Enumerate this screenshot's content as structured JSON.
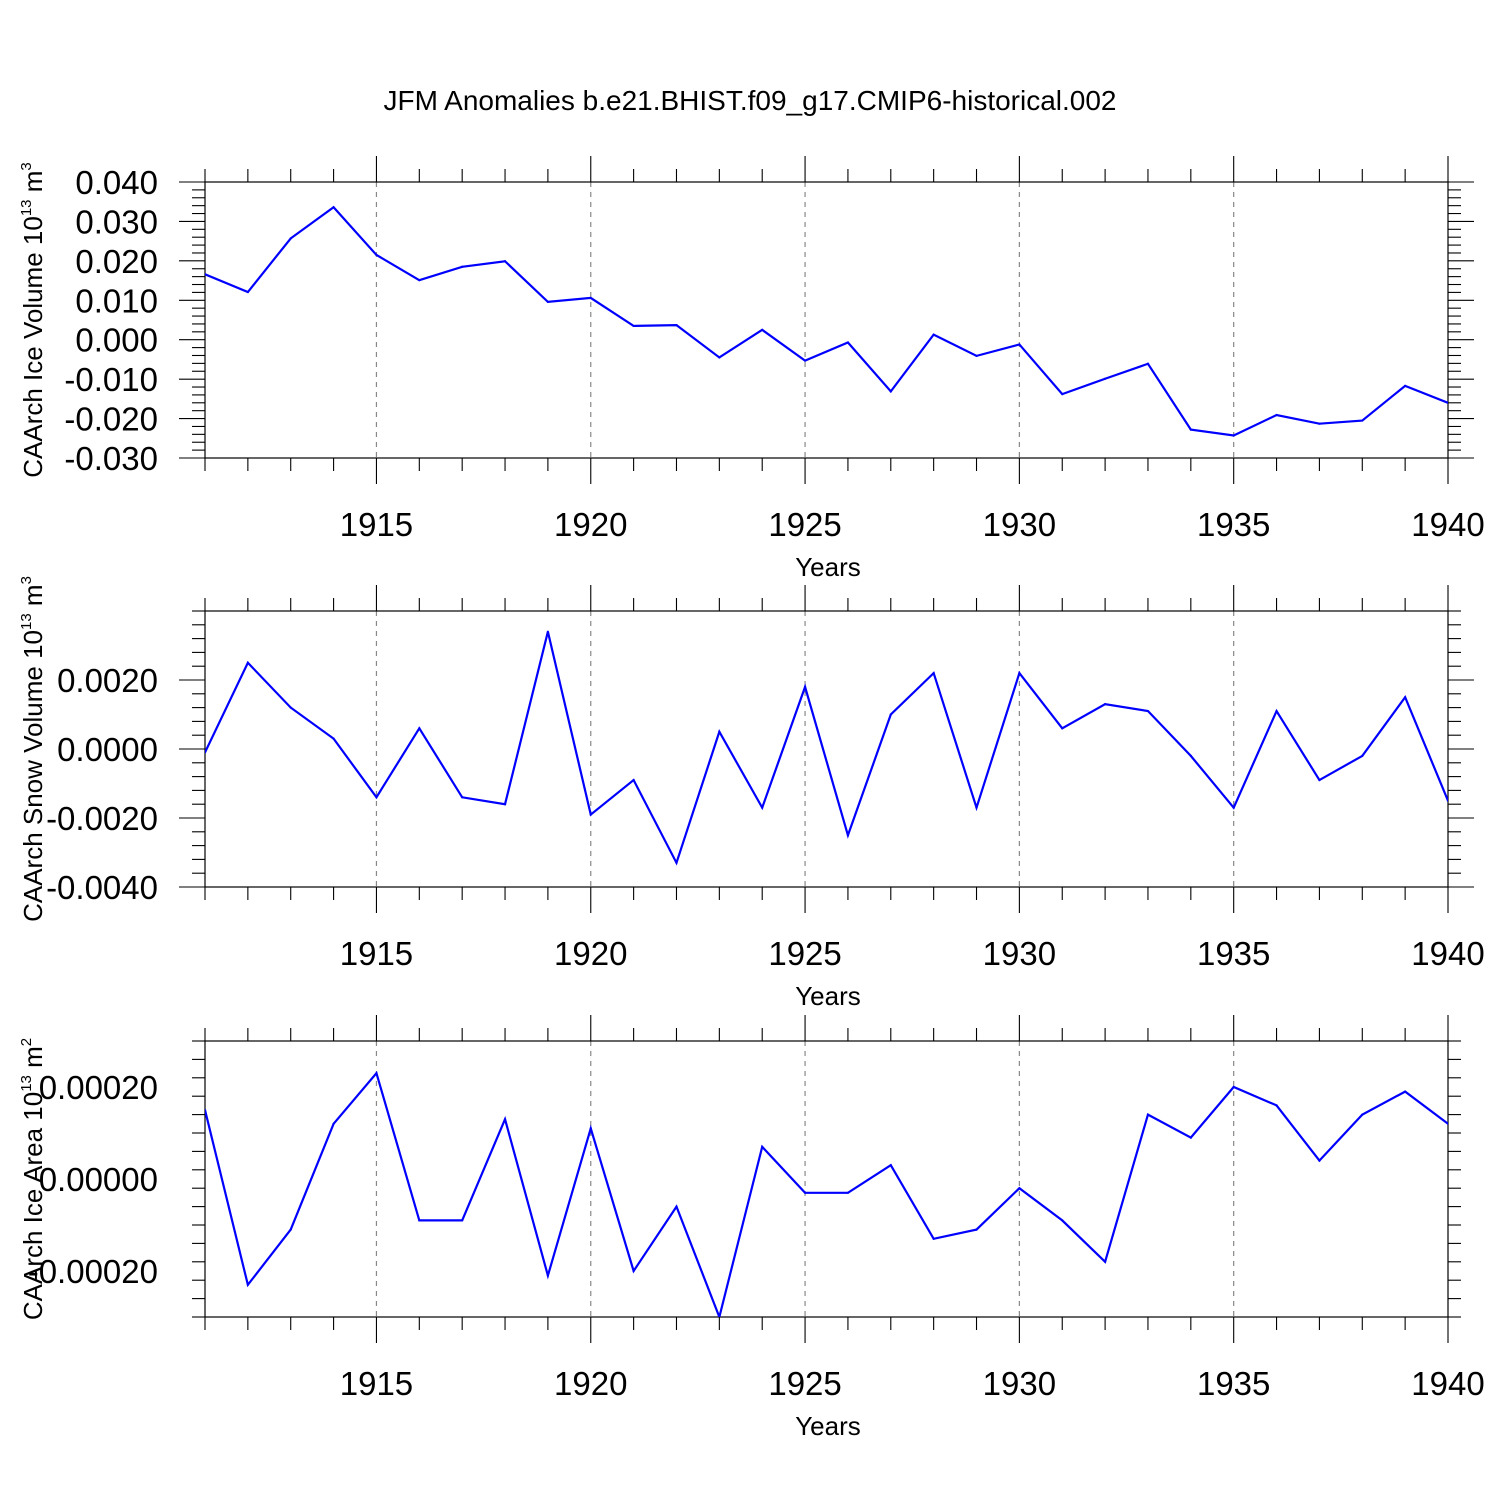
{
  "figure_title": "JFM Anomalies b.e21.BHIST.f09_g17.CMIP6-historical.002",
  "colors": {
    "line": "#0000ff",
    "axis": "#000000",
    "grid": "#888888"
  },
  "chart_data": [
    {
      "type": "line",
      "ylabel": "CAArch Ice Volume 10",
      "ylabel_exp": "13",
      "ylabel_unit": " m",
      "ylabel_unit_exp": "3",
      "xlabel": "Years",
      "xlim": [
        1911,
        1940
      ],
      "ylim": [
        -0.03,
        0.04
      ],
      "xticks": [
        1915,
        1920,
        1925,
        1930,
        1935,
        1940
      ],
      "xtick_labels": [
        "1915",
        "1920",
        "1925",
        "1930",
        "1935",
        "1940"
      ],
      "yticks": [
        0.04,
        0.03,
        0.02,
        0.01,
        0.0,
        -0.01,
        -0.02,
        -0.03
      ],
      "ytick_labels": [
        "0.040",
        "0.030",
        "0.020",
        "0.010",
        "0.000",
        "-0.010",
        "-0.020",
        "-0.030"
      ],
      "grid": "vertical dashed at major x ticks",
      "series": [
        {
          "x": [
            1911,
            1912,
            1913,
            1914,
            1915,
            1916,
            1917,
            1918,
            1919,
            1920,
            1921,
            1922,
            1923,
            1924,
            1925,
            1926,
            1927,
            1928,
            1929,
            1930,
            1931,
            1932,
            1933,
            1934,
            1935,
            1936,
            1937,
            1938,
            1939,
            1940
          ],
          "values": [
            0.0166,
            0.0121,
            0.0257,
            0.0336,
            0.0215,
            0.0151,
            0.0185,
            0.0199,
            0.0096,
            0.0106,
            0.0035,
            0.0037,
            -0.0045,
            0.0025,
            -0.0053,
            -0.0007,
            -0.0131,
            0.0013,
            -0.0041,
            -0.0012,
            -0.0138,
            -0.0099,
            -0.0061,
            -0.0228,
            -0.0243,
            -0.0191,
            -0.0213,
            -0.0205,
            -0.0117,
            -0.016
          ]
        }
      ]
    },
    {
      "type": "line",
      "ylabel": "CAArch Snow Volume 10",
      "ylabel_exp": "13",
      "ylabel_unit": " m",
      "ylabel_unit_exp": "3",
      "xlabel": "Years",
      "xlim": [
        1911,
        1940
      ],
      "ylim": [
        -0.004,
        0.004
      ],
      "xticks": [
        1915,
        1920,
        1925,
        1930,
        1935,
        1940
      ],
      "xtick_labels": [
        "1915",
        "1920",
        "1925",
        "1930",
        "1935",
        "1940"
      ],
      "yticks": [
        0.002,
        0.0,
        -0.002,
        -0.004
      ],
      "ytick_labels": [
        "0.0020",
        "0.0000",
        "-0.0020",
        "-0.0040"
      ],
      "grid": "vertical dashed at major x ticks",
      "series": [
        {
          "x": [
            1911,
            1912,
            1913,
            1914,
            1915,
            1916,
            1917,
            1918,
            1919,
            1920,
            1921,
            1922,
            1923,
            1924,
            1925,
            1926,
            1927,
            1928,
            1929,
            1930,
            1931,
            1932,
            1933,
            1934,
            1935,
            1936,
            1937,
            1938,
            1939,
            1940
          ],
          "values": [
            -0.0001,
            0.0025,
            0.0012,
            0.0003,
            -0.0014,
            0.0006,
            -0.0014,
            -0.0016,
            0.0034,
            -0.0019,
            -0.0009,
            -0.0033,
            0.0005,
            -0.0017,
            0.0018,
            -0.0025,
            0.001,
            0.0022,
            -0.0017,
            0.0022,
            0.0006,
            0.0013,
            0.0011,
            -0.0002,
            -0.0017,
            0.0011,
            -0.0009,
            -0.0002,
            0.0015,
            -0.0015
          ]
        }
      ]
    },
    {
      "type": "line",
      "ylabel": "CAArch Ice Area 10",
      "ylabel_exp": "13",
      "ylabel_unit": " m",
      "ylabel_unit_exp": "2",
      "xlabel": "Years",
      "xlim": [
        1911,
        1940
      ],
      "ylim": [
        -0.0003,
        0.0003
      ],
      "xticks": [
        1915,
        1920,
        1925,
        1930,
        1935,
        1940
      ],
      "xtick_labels": [
        "1915",
        "1920",
        "1925",
        "1930",
        "1935",
        "1940"
      ],
      "yticks": [
        0.0002,
        0.0,
        -0.0002
      ],
      "ytick_labels": [
        "0.00020",
        "0.00000",
        "-0.00020"
      ],
      "grid": "vertical dashed at major x ticks",
      "series": [
        {
          "x": [
            1911,
            1912,
            1913,
            1914,
            1915,
            1916,
            1917,
            1918,
            1919,
            1920,
            1921,
            1922,
            1923,
            1924,
            1925,
            1926,
            1927,
            1928,
            1929,
            1930,
            1931,
            1932,
            1933,
            1934,
            1935,
            1936,
            1937,
            1938,
            1939,
            1940
          ],
          "values": [
            0.00015,
            -0.00023,
            -0.00011,
            0.00012,
            0.00023,
            -9e-05,
            -9e-05,
            0.00013,
            -0.00021,
            0.00011,
            -0.0002,
            -6e-05,
            -0.0003,
            7e-05,
            -3e-05,
            -3e-05,
            3e-05,
            -0.00013,
            -0.00011,
            -2e-05,
            -9e-05,
            -0.00018,
            0.00014,
            9e-05,
            0.0002,
            0.00016,
            4e-05,
            0.00014,
            0.00019,
            0.00012
          ]
        }
      ]
    }
  ]
}
